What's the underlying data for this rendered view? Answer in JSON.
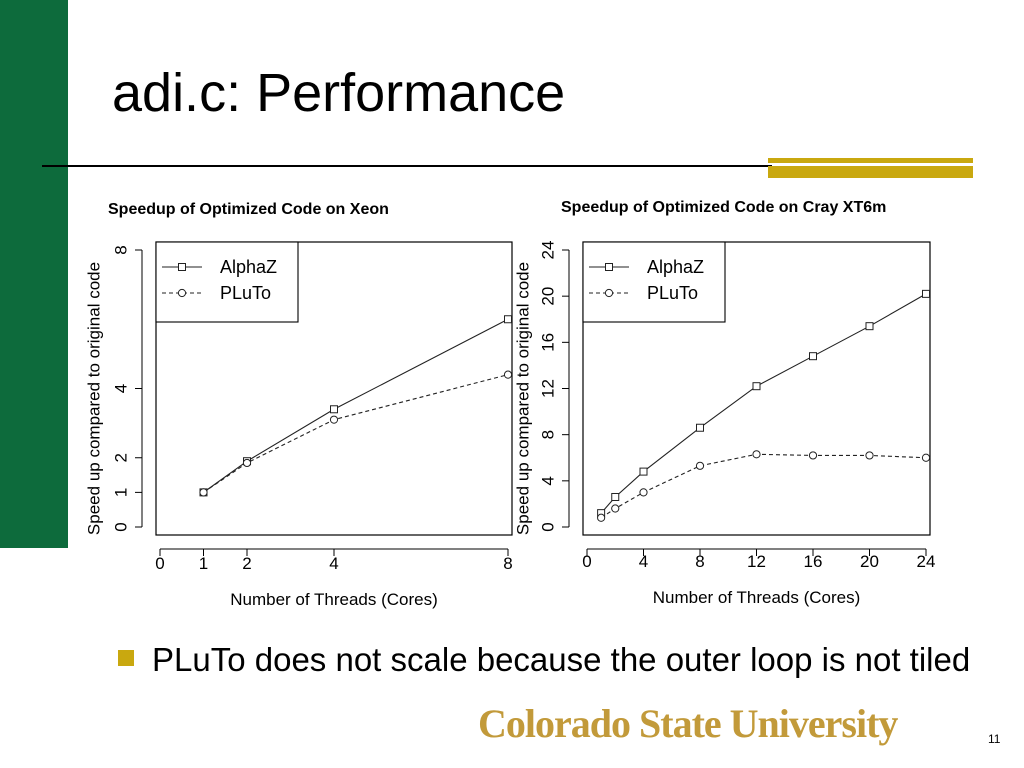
{
  "slide": {
    "title": "adi.c: Performance",
    "bullet": "PLuTo does not scale because the outer loop is not tiled",
    "logo": "Colorado State University",
    "page_number": "11",
    "colors": {
      "green": "#0d6b3c",
      "gold": "#c9a80f",
      "logo": "#c29a3a"
    }
  },
  "chart_data": [
    {
      "type": "line",
      "title": "Speedup of Optimized Code on Xeon",
      "xlabel": "Number of Threads (Cores)",
      "ylabel": "Speed up compared to original code",
      "x_ticks": [
        0,
        1,
        2,
        4,
        8
      ],
      "y_ticks": [
        0,
        1,
        2,
        4,
        8
      ],
      "xlim": [
        0,
        8
      ],
      "ylim": [
        0,
        8
      ],
      "legend_position": "top-left",
      "series": [
        {
          "name": "AlphaZ",
          "marker": "square",
          "dash": "solid",
          "x": [
            1,
            2,
            4,
            8
          ],
          "y": [
            1.0,
            1.9,
            3.4,
            6.0
          ]
        },
        {
          "name": "PLuTo",
          "marker": "circle",
          "dash": "dashed",
          "x": [
            1,
            2,
            4,
            8
          ],
          "y": [
            1.0,
            1.85,
            3.1,
            4.4
          ]
        }
      ]
    },
    {
      "type": "line",
      "title": "Speedup of Optimized Code on Cray XT6m",
      "xlabel": "Number of Threads (Cores)",
      "ylabel": "Speed up compared to original code",
      "x_ticks": [
        0,
        4,
        8,
        12,
        16,
        20,
        24
      ],
      "y_ticks": [
        0,
        4,
        8,
        12,
        16,
        20,
        24
      ],
      "xlim": [
        0,
        24
      ],
      "ylim": [
        0,
        24
      ],
      "legend_position": "top-left",
      "series": [
        {
          "name": "AlphaZ",
          "marker": "square",
          "dash": "solid",
          "x": [
            1,
            2,
            4,
            8,
            12,
            16,
            20,
            24
          ],
          "y": [
            1.2,
            2.6,
            4.8,
            8.6,
            12.2,
            14.8,
            17.4,
            20.2
          ]
        },
        {
          "name": "PLuTo",
          "marker": "circle",
          "dash": "dashed",
          "x": [
            1,
            2,
            4,
            8,
            12,
            16,
            20,
            24
          ],
          "y": [
            0.8,
            1.6,
            3.0,
            5.3,
            6.3,
            6.2,
            6.2,
            6.0
          ]
        }
      ]
    }
  ]
}
